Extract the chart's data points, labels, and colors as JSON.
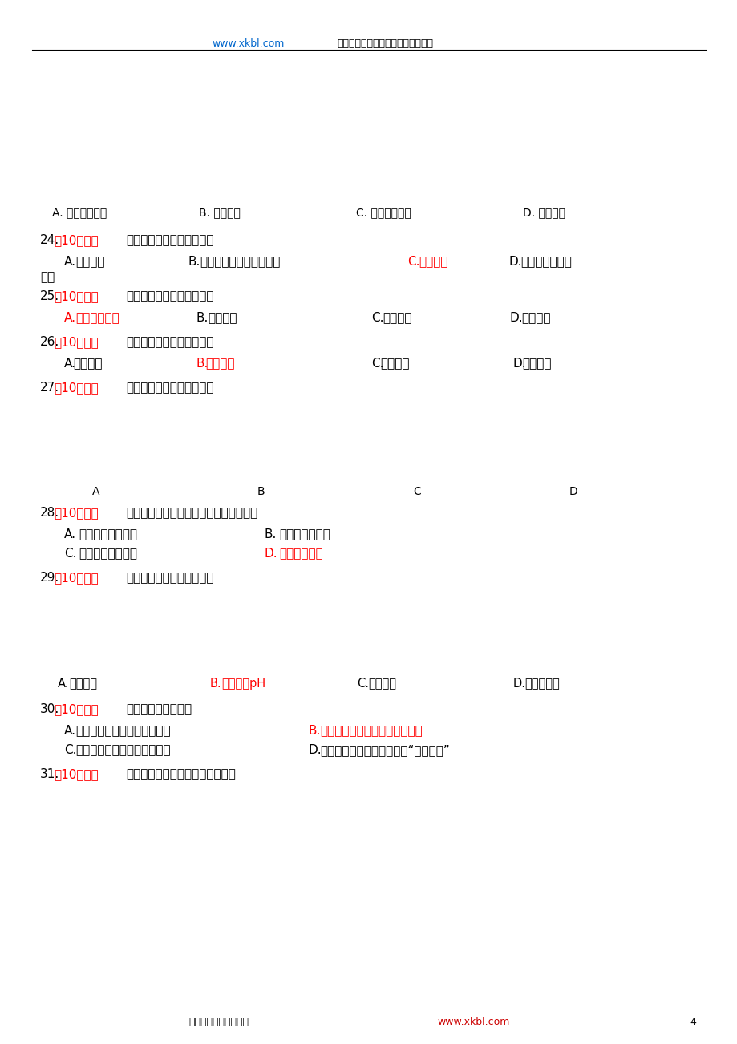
{
  "bg_color": "#ffffff",
  "header_url": "www.xkbl.com",
  "header_text": "新课标第一网不用注册，免费下载！",
  "img_labels_top": [
    "A. 高温炅烧固体",
    "B. 加热粉末",
    "C. 水浴加热液体",
    "D. 加热液体"
  ],
  "footer_left": "新课标第一网系列资料",
  "footer_url": "www.xkbl.com",
  "page_num": "4"
}
